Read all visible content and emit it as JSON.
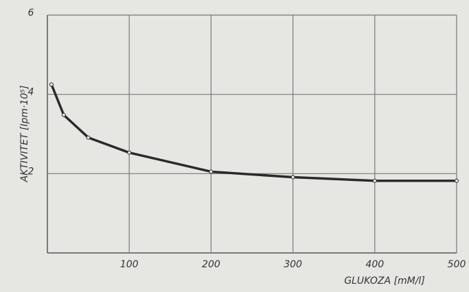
{
  "chart_data": {
    "type": "line",
    "xlabel": "GLUKOZA [mM/l]",
    "ylabel": "AKTIVITET [Ipm·10⁵]",
    "x": [
      5,
      20,
      50,
      100,
      200,
      300,
      400,
      500
    ],
    "series": [
      {
        "color": "#2a2a2a",
        "values": [
          4.25,
          3.48,
          2.91,
          2.53,
          2.05,
          1.91,
          1.82,
          1.82
        ]
      }
    ],
    "xlim": [
      0,
      500
    ],
    "ylim": [
      0,
      6
    ],
    "xticks": [
      100,
      200,
      300,
      400,
      500
    ],
    "yticks": [
      2,
      4,
      6
    ],
    "grid": true
  }
}
